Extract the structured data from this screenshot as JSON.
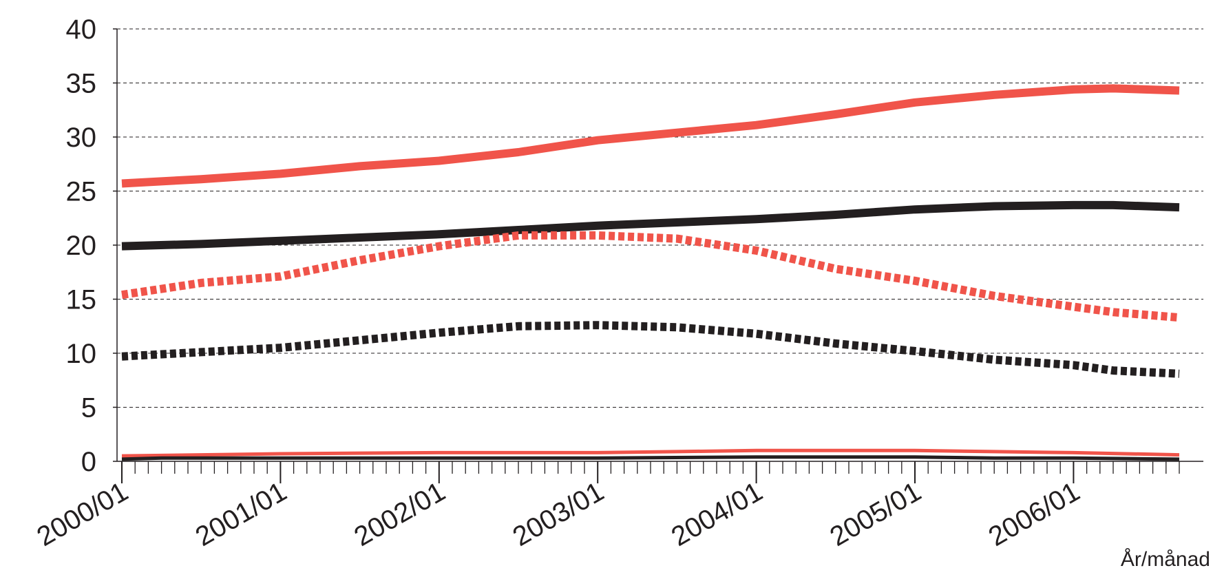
{
  "chart_data": {
    "type": "line",
    "title": "",
    "xlabel": "År/månad",
    "ylabel": "",
    "ylim": [
      0,
      40
    ],
    "yticks": [
      0,
      5,
      10,
      15,
      20,
      25,
      30,
      35,
      40
    ],
    "grid": true,
    "legend": "none",
    "x_ticks": [
      "2000/01",
      "2001/01",
      "2002/01",
      "2003/01",
      "2004/01",
      "2005/01",
      "2006/01"
    ],
    "x_range": [
      "2000/01",
      "2006/09"
    ],
    "colors": {
      "red": "#f0544a",
      "black": "#231f20"
    },
    "series": [
      {
        "color": "#f0544a",
        "style": "solid",
        "points": [
          [
            "2000/01",
            25.7
          ],
          [
            "2000/07",
            26.1
          ],
          [
            "2001/01",
            26.6
          ],
          [
            "2001/07",
            27.3
          ],
          [
            "2002/01",
            27.8
          ],
          [
            "2002/07",
            28.6
          ],
          [
            "2003/01",
            29.7
          ],
          [
            "2003/07",
            30.4
          ],
          [
            "2004/01",
            31.1
          ],
          [
            "2004/07",
            32.1
          ],
          [
            "2005/01",
            33.2
          ],
          [
            "2005/07",
            33.9
          ],
          [
            "2006/01",
            34.4
          ],
          [
            "2006/04",
            34.5
          ],
          [
            "2006/09",
            34.3
          ]
        ]
      },
      {
        "color": "#231f20",
        "style": "solid",
        "points": [
          [
            "2000/01",
            19.9
          ],
          [
            "2000/07",
            20.1
          ],
          [
            "2001/01",
            20.4
          ],
          [
            "2001/07",
            20.7
          ],
          [
            "2002/01",
            21.0
          ],
          [
            "2002/07",
            21.4
          ],
          [
            "2003/01",
            21.8
          ],
          [
            "2003/07",
            22.1
          ],
          [
            "2004/01",
            22.4
          ],
          [
            "2004/07",
            22.8
          ],
          [
            "2005/01",
            23.3
          ],
          [
            "2005/07",
            23.6
          ],
          [
            "2006/01",
            23.7
          ],
          [
            "2006/04",
            23.7
          ],
          [
            "2006/09",
            23.5
          ]
        ]
      },
      {
        "color": "#f0544a",
        "style": "dotted",
        "points": [
          [
            "2000/01",
            15.4
          ],
          [
            "2000/07",
            16.5
          ],
          [
            "2001/01",
            17.1
          ],
          [
            "2001/07",
            18.6
          ],
          [
            "2002/01",
            19.9
          ],
          [
            "2002/07",
            20.9
          ],
          [
            "2003/01",
            20.9
          ],
          [
            "2003/07",
            20.6
          ],
          [
            "2004/01",
            19.5
          ],
          [
            "2004/07",
            17.8
          ],
          [
            "2005/01",
            16.7
          ],
          [
            "2005/07",
            15.3
          ],
          [
            "2006/01",
            14.3
          ],
          [
            "2006/04",
            13.8
          ],
          [
            "2006/09",
            13.3
          ]
        ]
      },
      {
        "color": "#231f20",
        "style": "dotted",
        "points": [
          [
            "2000/01",
            9.7
          ],
          [
            "2000/07",
            10.1
          ],
          [
            "2001/01",
            10.5
          ],
          [
            "2001/07",
            11.2
          ],
          [
            "2002/01",
            11.9
          ],
          [
            "2002/07",
            12.5
          ],
          [
            "2003/01",
            12.6
          ],
          [
            "2003/07",
            12.4
          ],
          [
            "2004/01",
            11.8
          ],
          [
            "2004/07",
            10.9
          ],
          [
            "2005/01",
            10.2
          ],
          [
            "2005/07",
            9.4
          ],
          [
            "2006/01",
            8.9
          ],
          [
            "2006/04",
            8.4
          ],
          [
            "2006/09",
            8.1
          ]
        ]
      },
      {
        "color": "#f0544a",
        "style": "solid-thin",
        "points": [
          [
            "2000/01",
            0.5
          ],
          [
            "2000/07",
            0.6
          ],
          [
            "2001/01",
            0.7
          ],
          [
            "2002/01",
            0.8
          ],
          [
            "2003/01",
            0.8
          ],
          [
            "2003/07",
            0.9
          ],
          [
            "2004/01",
            1.0
          ],
          [
            "2005/01",
            1.0
          ],
          [
            "2005/07",
            0.9
          ],
          [
            "2006/01",
            0.8
          ],
          [
            "2006/09",
            0.6
          ]
        ]
      },
      {
        "color": "#231f20",
        "style": "solid-thin",
        "points": [
          [
            "2000/01",
            0.2
          ],
          [
            "2000/04",
            0.3
          ],
          [
            "2001/01",
            0.3
          ],
          [
            "2002/01",
            0.3
          ],
          [
            "2003/01",
            0.3
          ],
          [
            "2004/01",
            0.4
          ],
          [
            "2005/01",
            0.4
          ],
          [
            "2005/07",
            0.3
          ],
          [
            "2006/01",
            0.3
          ],
          [
            "2006/09",
            0.2
          ]
        ]
      }
    ]
  }
}
